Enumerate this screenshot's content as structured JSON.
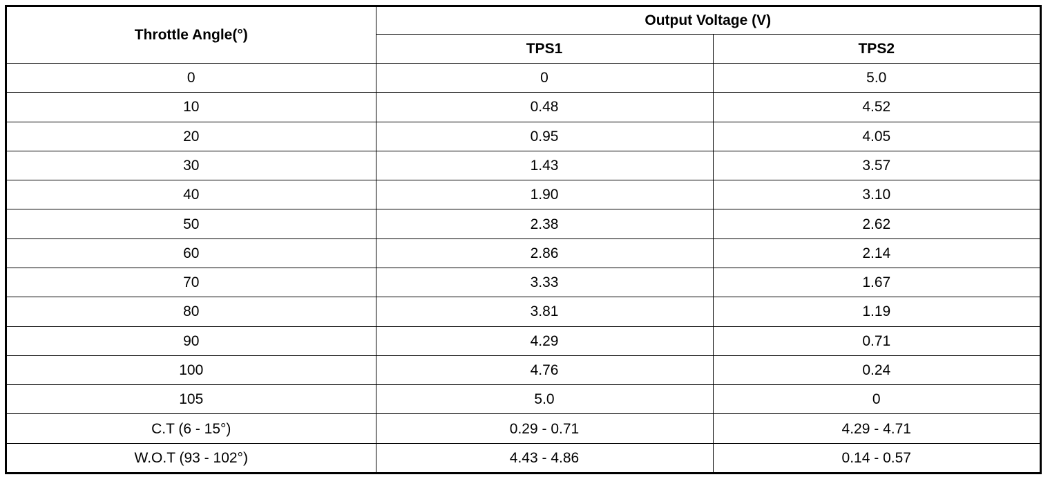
{
  "table": {
    "headers": {
      "angle": "Throttle Angle(°)",
      "output_group": "Output Voltage (V)",
      "tps1": "TPS1",
      "tps2": "TPS2"
    },
    "rows": [
      {
        "angle": "0",
        "tps1": "0",
        "tps2": "5.0"
      },
      {
        "angle": "10",
        "tps1": "0.48",
        "tps2": "4.52"
      },
      {
        "angle": "20",
        "tps1": "0.95",
        "tps2": "4.05"
      },
      {
        "angle": "30",
        "tps1": "1.43",
        "tps2": "3.57"
      },
      {
        "angle": "40",
        "tps1": "1.90",
        "tps2": "3.10"
      },
      {
        "angle": "50",
        "tps1": "2.38",
        "tps2": "2.62"
      },
      {
        "angle": "60",
        "tps1": "2.86",
        "tps2": "2.14"
      },
      {
        "angle": "70",
        "tps1": "3.33",
        "tps2": "1.67"
      },
      {
        "angle": "80",
        "tps1": "3.81",
        "tps2": "1.19"
      },
      {
        "angle": "90",
        "tps1": "4.29",
        "tps2": "0.71"
      },
      {
        "angle": "100",
        "tps1": "4.76",
        "tps2": "0.24"
      },
      {
        "angle": "105",
        "tps1": "5.0",
        "tps2": "0"
      },
      {
        "angle": "C.T (6 - 15°)",
        "tps1": "0.29 - 0.71",
        "tps2": "4.29 - 4.71"
      },
      {
        "angle": "W.O.T (93 - 102°)",
        "tps1": "4.43 - 4.86",
        "tps2": "0.14 - 0.57"
      }
    ]
  }
}
